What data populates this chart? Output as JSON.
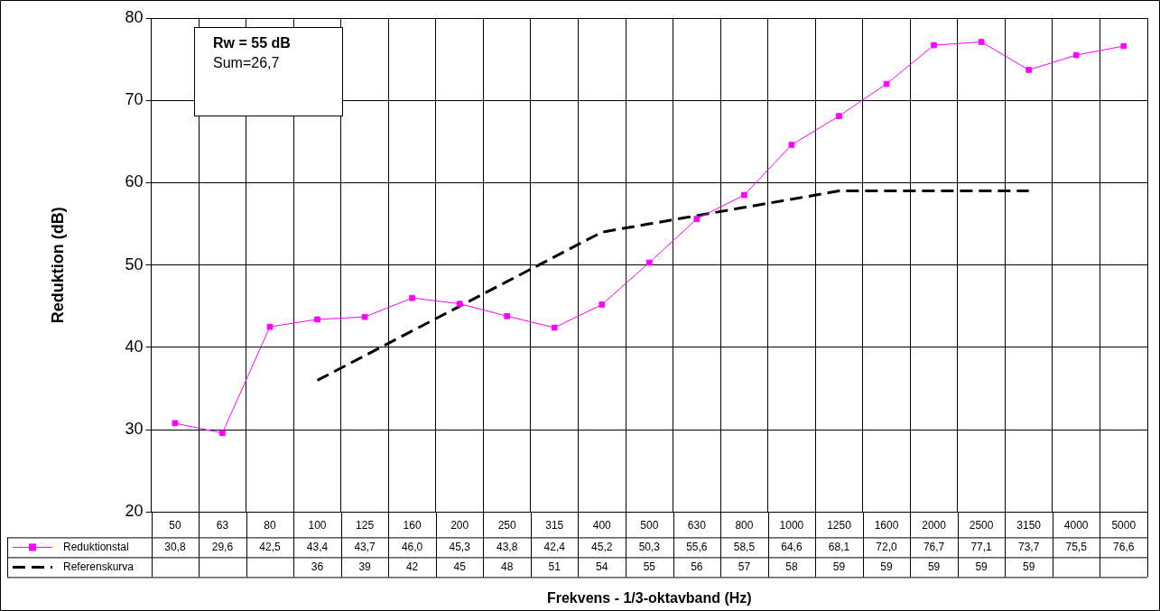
{
  "chart_data": {
    "type": "line",
    "xlabel": "Frekvens - 1/3-oktavband (Hz)",
    "ylabel": "Reduktion (dB)",
    "categories": [
      "50",
      "63",
      "80",
      "100",
      "125",
      "160",
      "200",
      "250",
      "315",
      "400",
      "500",
      "630",
      "800",
      "1000",
      "1250",
      "1600",
      "2000",
      "2500",
      "3150",
      "4000",
      "5000"
    ],
    "series": [
      {
        "name": "Reduktionstal",
        "color": "#ff00ff",
        "marker": "square",
        "line_style": "solid",
        "values": [
          30.8,
          29.6,
          42.5,
          43.4,
          43.7,
          46.0,
          45.3,
          43.8,
          42.4,
          45.2,
          50.3,
          55.6,
          58.5,
          64.6,
          68.1,
          72.0,
          76.7,
          77.1,
          73.7,
          75.5,
          76.6
        ],
        "value_labels": [
          "30,8",
          "29,6",
          "42,5",
          "43,4",
          "43,7",
          "46,0",
          "45,3",
          "43,8",
          "42,4",
          "45,2",
          "50,3",
          "55,6",
          "58,5",
          "64,6",
          "68,1",
          "72,0",
          "76,7",
          "77,1",
          "73,7",
          "75,5",
          "76,6"
        ]
      },
      {
        "name": "Referenskurva",
        "color": "#000000",
        "marker": "none",
        "line_style": "dashed",
        "values": [
          null,
          null,
          null,
          36,
          39,
          42,
          45,
          48,
          51,
          54,
          55,
          56,
          57,
          58,
          59,
          59,
          59,
          59,
          59,
          null,
          null
        ],
        "value_labels": [
          null,
          null,
          null,
          "36",
          "39",
          "42",
          "45",
          "48",
          "51",
          "54",
          "55",
          "56",
          "57",
          "58",
          "59",
          "59",
          "59",
          "59",
          "59",
          null,
          null
        ]
      }
    ],
    "ylim": [
      20,
      80
    ],
    "yticks": [
      20,
      30,
      40,
      50,
      60,
      70,
      80
    ],
    "grid": true,
    "legend": "bottom",
    "annotations": [
      "Rw = 55 dB",
      "Sum=26,7"
    ]
  }
}
